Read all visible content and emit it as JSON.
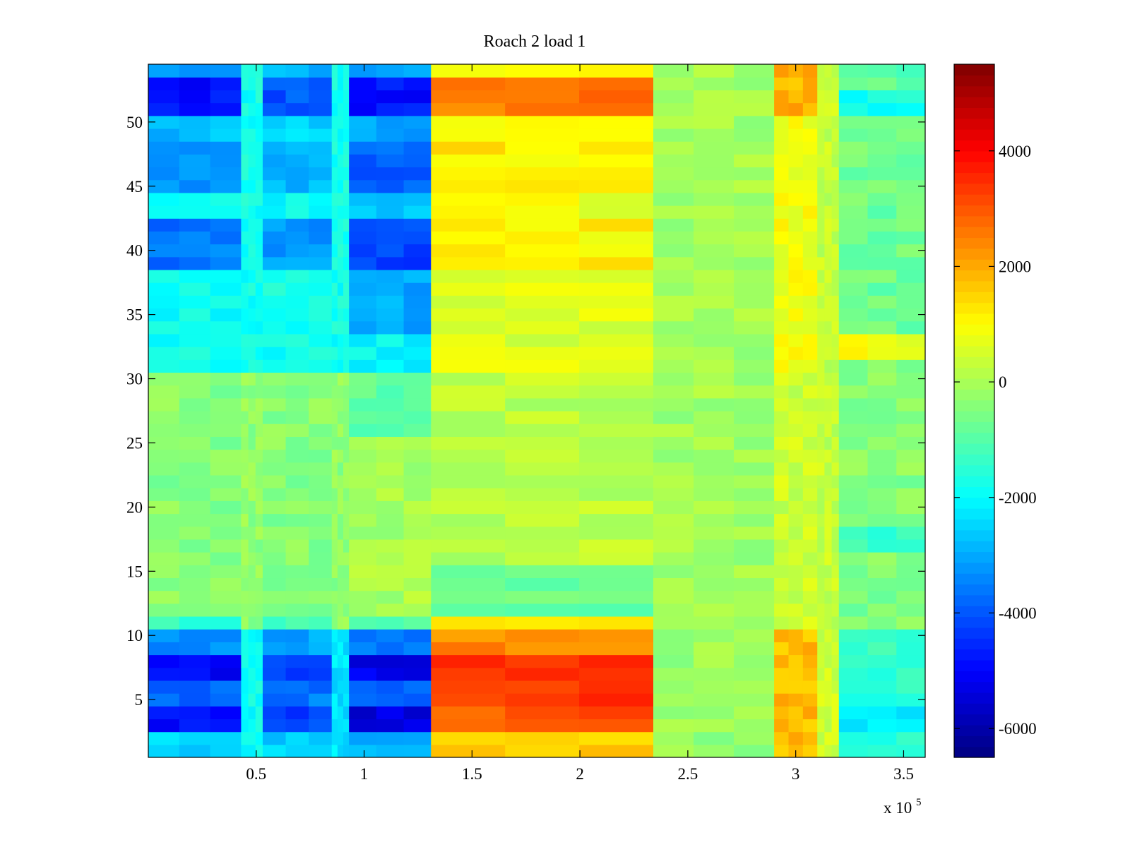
{
  "chart_data": {
    "type": "heatmap",
    "title": "Roach 2 load 1",
    "xlabel": "",
    "ylabel": "",
    "x_multiplier_label": {
      "base": "x 10",
      "exponent": "5"
    },
    "xlim": [
      0,
      3.6
    ],
    "ylim": [
      0.5,
      54.5
    ],
    "x_ticks": [
      0.5,
      1,
      1.5,
      2,
      2.5,
      3,
      3.5
    ],
    "x_tick_labels": [
      "0.5",
      "1",
      "1.5",
      "2",
      "2.5",
      "3",
      "3.5"
    ],
    "y_ticks": [
      5,
      10,
      15,
      20,
      25,
      30,
      35,
      40,
      45,
      50
    ],
    "y_tick_labels": [
      "5",
      "10",
      "15",
      "20",
      "25",
      "30",
      "35",
      "40",
      "45",
      "50"
    ],
    "rows": 54,
    "colormap": "jet",
    "colorbar": {
      "range": [
        -6500,
        5500
      ],
      "ticks": [
        -6000,
        -4000,
        -2000,
        0,
        2000,
        4000
      ],
      "tick_labels": [
        "-6000",
        "-4000",
        "-2000",
        "0",
        "2000",
        "4000"
      ]
    },
    "column_segments": [
      {
        "x_start": 0.0,
        "x_end": 0.43,
        "row_values": {
          "1-2": -2600,
          "3-4": -4900,
          "5-6": -3800,
          "7-8": -5000,
          "9-10": -3400,
          "11": -1400,
          "12-30": -400,
          "31-38": -1900,
          "39-42": -3600,
          "43-44": -2000,
          "45-48": -3200,
          "49-50": -2800,
          "51-53": -4800,
          "54": -3000
        }
      },
      {
        "x_start": 0.43,
        "x_end": 0.53,
        "row_values": {
          "1-10": -1900,
          "11-30": -300,
          "31-54": -1800
        }
      },
      {
        "x_start": 0.53,
        "x_end": 0.85,
        "row_values": {
          "1-2": -2600,
          "3-4": -4200,
          "5-6": -3600,
          "7-8": -4400,
          "9-10": -3000,
          "11": -1300,
          "12-30": -400,
          "31-38": -1800,
          "39-42": -3200,
          "43-44": -1900,
          "45-48": -2900,
          "49-50": -2500,
          "51-53": -4000,
          "54": -2800
        }
      },
      {
        "x_start": 0.85,
        "x_end": 0.93,
        "row_values": {
          "1-10": -2300,
          "11-30": -300,
          "31-54": -1800
        }
      },
      {
        "x_start": 0.93,
        "x_end": 1.31,
        "row_values": {
          "1-2": -3000,
          "3-4": -5400,
          "5-6": -4000,
          "7-8": -5200,
          "9-10": -3600,
          "11": -1200,
          "12-25": 0,
          "26-30": -900,
          "31-33": -2000,
          "34-38": -3000,
          "39-42": -4200,
          "43-44": -2500,
          "45-48": -3800,
          "49-50": -3000,
          "51-53": -4800,
          "54": -3000
        }
      },
      {
        "x_start": 1.31,
        "x_end": 2.34,
        "row_values": {
          "1-2": 1500,
          "3-4": 3000,
          "5-6": 3300,
          "7-8": 3500,
          "9-10": 2400,
          "11": 1000,
          "12-15": -800,
          "16-30": 200,
          "31-38": 600,
          "39-42": 1100,
          "43-44": 800,
          "45-48": 1200,
          "49-50": 900,
          "51-53": 2600,
          "54": 1200
        }
      },
      {
        "x_start": 2.34,
        "x_end": 2.9,
        "row_values": {
          "1-10": -200,
          "11-54": -100
        }
      },
      {
        "x_start": 2.9,
        "x_end": 3.1,
        "row_values": {
          "1-10": 1800,
          "11-30": 400,
          "31-50": 900,
          "51-54": 1900
        }
      },
      {
        "x_start": 3.1,
        "x_end": 3.2,
        "row_values": {
          "1-10": 400,
          "11-54": 300
        }
      },
      {
        "x_start": 3.2,
        "x_end": 3.6,
        "row_values": {
          "1-2": -1600,
          "3-4": -2300,
          "5-10": -1400,
          "11-16": -500,
          "17-18": -1400,
          "19-31": -400,
          "32-33": 900,
          "34-50": -700,
          "51-52": -1800,
          "53-54": -900
        }
      }
    ]
  }
}
